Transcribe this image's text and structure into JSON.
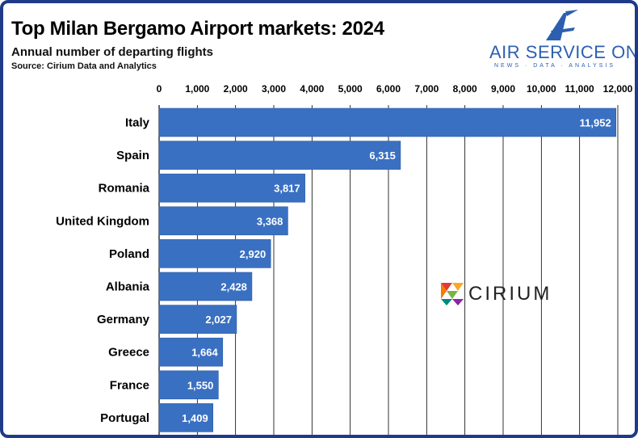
{
  "header": {
    "title": "Top Milan Bergamo Airport markets: 2024",
    "subtitle": "Annual number of departing flights",
    "source": "Source: Cirium Data and Analytics"
  },
  "logos": {
    "air_service_one": "AIR SERVICE ONE",
    "air_service_one_tagline": "NEWS · DATA · ANALYSIS",
    "cirium": "CIRIUM"
  },
  "colors": {
    "bar": "#3a70c2",
    "bar_edge": "#2d5aa6",
    "grid": "#000000",
    "frame": "#1f3a8a",
    "brand_blue": "#2d5fb0"
  },
  "chart_data": {
    "type": "bar",
    "orientation": "horizontal",
    "title": "Top Milan Bergamo Airport markets: 2024",
    "subtitle": "Annual number of departing flights",
    "xaxis_position": "top",
    "xlim": [
      0,
      12000
    ],
    "xticks": [
      0,
      1000,
      2000,
      3000,
      4000,
      5000,
      6000,
      7000,
      8000,
      9000,
      10000,
      11000,
      12000
    ],
    "xtick_labels": [
      "0",
      "1,000",
      "2,000",
      "3,000",
      "4,000",
      "5,000",
      "6,000",
      "7,000",
      "8,000",
      "9,000",
      "10,000",
      "11,000",
      "12,000"
    ],
    "grid": true,
    "categories": [
      "Italy",
      "Spain",
      "Romania",
      "United Kingdom",
      "Poland",
      "Albania",
      "Germany",
      "Greece",
      "France",
      "Portugal"
    ],
    "values": [
      11952,
      6315,
      3817,
      3368,
      2920,
      2428,
      2027,
      1664,
      1550,
      1409
    ],
    "value_labels": [
      "11,952",
      "6,315",
      "3,817",
      "3,368",
      "2,920",
      "2,428",
      "2,027",
      "1,664",
      "1,550",
      "1,409"
    ]
  }
}
